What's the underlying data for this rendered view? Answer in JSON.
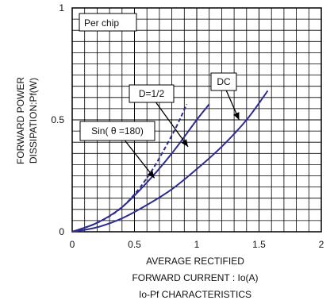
{
  "chart_data": {
    "type": "line",
    "title": "Io-Pf CHARACTERISTICS",
    "xlabel_lines": [
      "AVERAGE RECTIFIED",
      "FORWARD CURRENT : Io(A)"
    ],
    "ylabel_lines": [
      "FORWARD POWER",
      "DISSIPATION:Pf(W)"
    ],
    "xlim": [
      0,
      2
    ],
    "ylim": [
      0,
      1
    ],
    "xticks": [
      0,
      0.5,
      1,
      1.5,
      2
    ],
    "xtick_labels": [
      "0",
      "0.5",
      "1",
      "1.5",
      "2"
    ],
    "yticks": [
      0,
      0.5,
      1
    ],
    "ytick_labels": [
      "0",
      "0.5",
      "1"
    ],
    "grid": true,
    "inset_label": "Per chip",
    "series": [
      {
        "name": "DC",
        "style": "solid",
        "x": [
          0,
          0.2,
          0.4,
          0.6,
          0.8,
          1.0,
          1.2,
          1.4,
          1.57
        ],
        "y": [
          0,
          0.02,
          0.06,
          0.12,
          0.19,
          0.28,
          0.38,
          0.5,
          0.63
        ]
      },
      {
        "name": "D=1/2",
        "style": "solid",
        "x": [
          0,
          0.2,
          0.4,
          0.6,
          0.8,
          1.0,
          1.1
        ],
        "y": [
          0,
          0.04,
          0.11,
          0.22,
          0.35,
          0.5,
          0.57
        ]
      },
      {
        "name": "Sin(θ=180)",
        "style": "dashed",
        "x": [
          0,
          0.2,
          0.4,
          0.6,
          0.8,
          0.92
        ],
        "y": [
          0,
          0.04,
          0.11,
          0.24,
          0.43,
          0.57
        ]
      }
    ],
    "annotations": [
      {
        "text": "DC",
        "series": "DC",
        "arrow_to": [
          1.34,
          0.5
        ]
      },
      {
        "text": "D=1/2",
        "series": "D=1/2",
        "arrow_to": [
          0.93,
          0.38
        ]
      },
      {
        "text": "Sin( θ =180)",
        "series": "Sin(θ=180)",
        "arrow_to": [
          0.66,
          0.24
        ]
      }
    ],
    "colors": {
      "curve": "#2d2d8f",
      "grid": "#000000",
      "text": "#111111"
    }
  }
}
